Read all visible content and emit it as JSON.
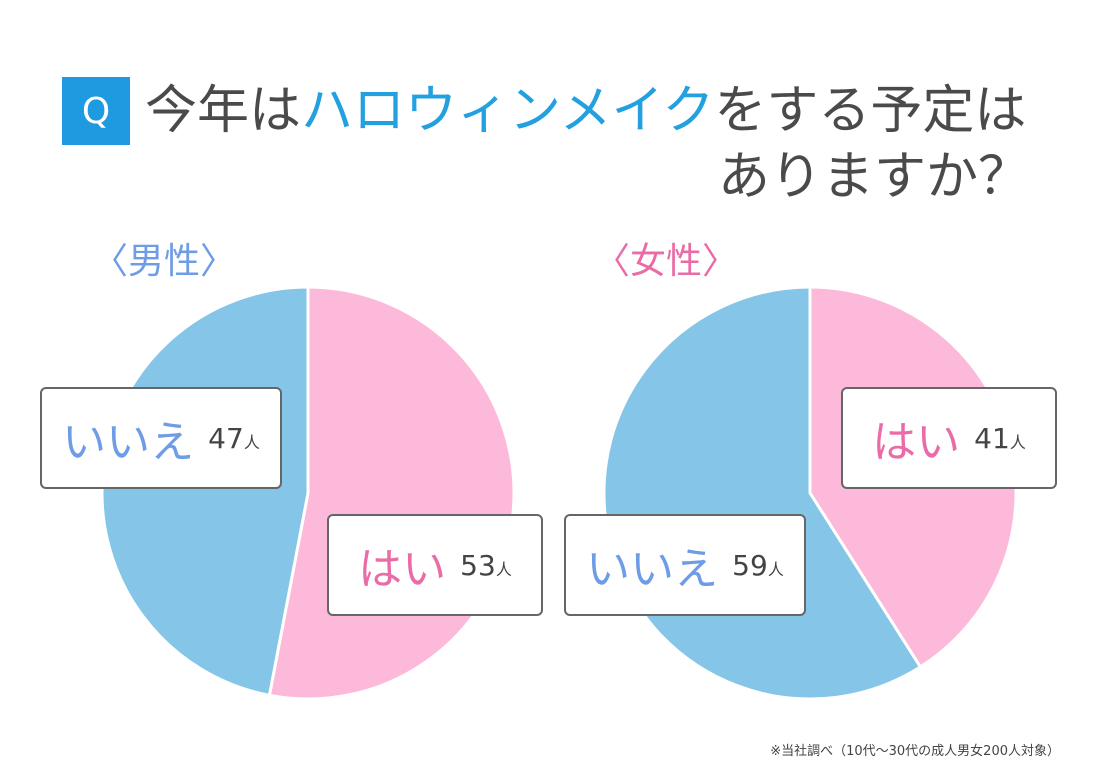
{
  "header": {
    "q_label": "Q",
    "title_pre": "今年は",
    "title_highlight": "ハロウィンメイク",
    "title_post": "をする予定は",
    "title_line2": "ありますか？"
  },
  "footnote": "※当社調べ（10代〜30代の成人男女200人対象）",
  "colors": {
    "yes": "#fdb9d9",
    "no": "#85c5e8",
    "yes_text": "#ea6ca6",
    "no_text": "#6e9ce6",
    "accent": "#1e9be0"
  },
  "chart_data": [
    {
      "type": "pie",
      "title": "〈男性〉",
      "unit": "人",
      "slices": [
        {
          "label": "はい",
          "value": 53
        },
        {
          "label": "いいえ",
          "value": 47
        }
      ]
    },
    {
      "type": "pie",
      "title": "〈女性〉",
      "unit": "人",
      "slices": [
        {
          "label": "はい",
          "value": 41
        },
        {
          "label": "いいえ",
          "value": 59
        }
      ]
    }
  ]
}
